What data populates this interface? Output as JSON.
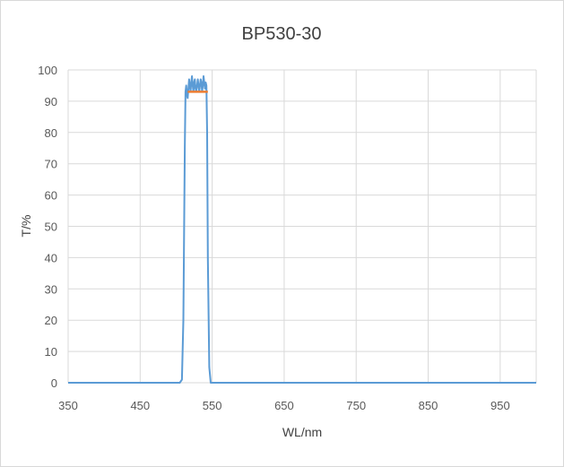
{
  "chart_data": {
    "type": "line",
    "title": "BP530-30",
    "xlabel": "WL/nm",
    "ylabel": "T/%",
    "xlim": [
      350,
      1000
    ],
    "ylim": [
      0,
      100
    ],
    "xticks": [
      350,
      450,
      550,
      650,
      750,
      850,
      950
    ],
    "yticks": [
      0,
      10,
      20,
      30,
      40,
      50,
      60,
      70,
      80,
      90,
      100
    ],
    "grid": true,
    "legend": "none",
    "series": [
      {
        "color": "#5b9bd5",
        "x": [
          350,
          505,
          508,
          510,
          512,
          513,
          514,
          515,
          516,
          517,
          518,
          519,
          520,
          521,
          522,
          523,
          524,
          525,
          526,
          527,
          528,
          529,
          530,
          531,
          532,
          533,
          534,
          535,
          536,
          537,
          538,
          539,
          540,
          541,
          542,
          543,
          544,
          546,
          548,
          1000
        ],
        "y": [
          0,
          0,
          1,
          20,
          75,
          93,
          95,
          92,
          91,
          94,
          97,
          95,
          93,
          96,
          98,
          95,
          93,
          96,
          97,
          94,
          93,
          95,
          97,
          95,
          93,
          95,
          97,
          96,
          93,
          95,
          98,
          96,
          94,
          96,
          95,
          80,
          40,
          5,
          0,
          0
        ]
      },
      {
        "color": "#ed7d31",
        "x": [
          516,
          544
        ],
        "y": [
          93,
          93
        ]
      }
    ]
  }
}
